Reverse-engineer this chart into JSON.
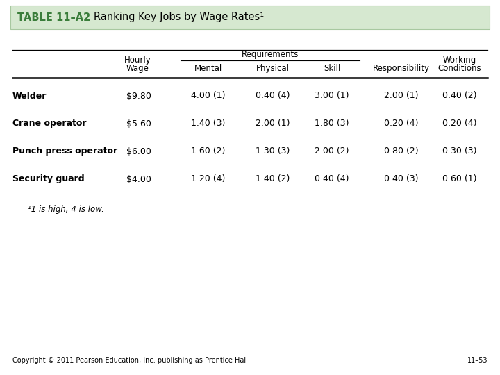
{
  "title_label": "TABLE 11–A2",
  "title_text": "Ranking Key Jobs by Wage Rates¹",
  "header_bg_color": "#d6e8d0",
  "title_label_color": "#3a7d3a",
  "requirements_label": "Requirements",
  "rows": [
    [
      "Welder",
      "$9.80",
      "4.00 (1)",
      "0.40 (4)",
      "3.00 (1)",
      "2.00 (1)",
      "0.40 (2)"
    ],
    [
      "Crane operator",
      "$5.60",
      "1.40 (3)",
      "2.00 (1)",
      "1.80 (3)",
      "0.20 (4)",
      "0.20 (4)"
    ],
    [
      "Punch press operator",
      "$6.00",
      "1.60 (2)",
      "1.30 (3)",
      "2.00 (2)",
      "0.80 (2)",
      "0.30 (3)"
    ],
    [
      "Security guard",
      "$4.00",
      "1.20 (4)",
      "1.40 (2)",
      "0.40 (4)",
      "0.40 (3)",
      "0.60 (1)"
    ]
  ],
  "footnote": "¹1 is high, 4 is low.",
  "copyright": "Copyright © 2011 Pearson Education, Inc. publishing as Prentice Hall",
  "page_num": "11–53",
  "bg_color": "#ffffff",
  "text_color": "#000000",
  "header_line_color": "#000000"
}
